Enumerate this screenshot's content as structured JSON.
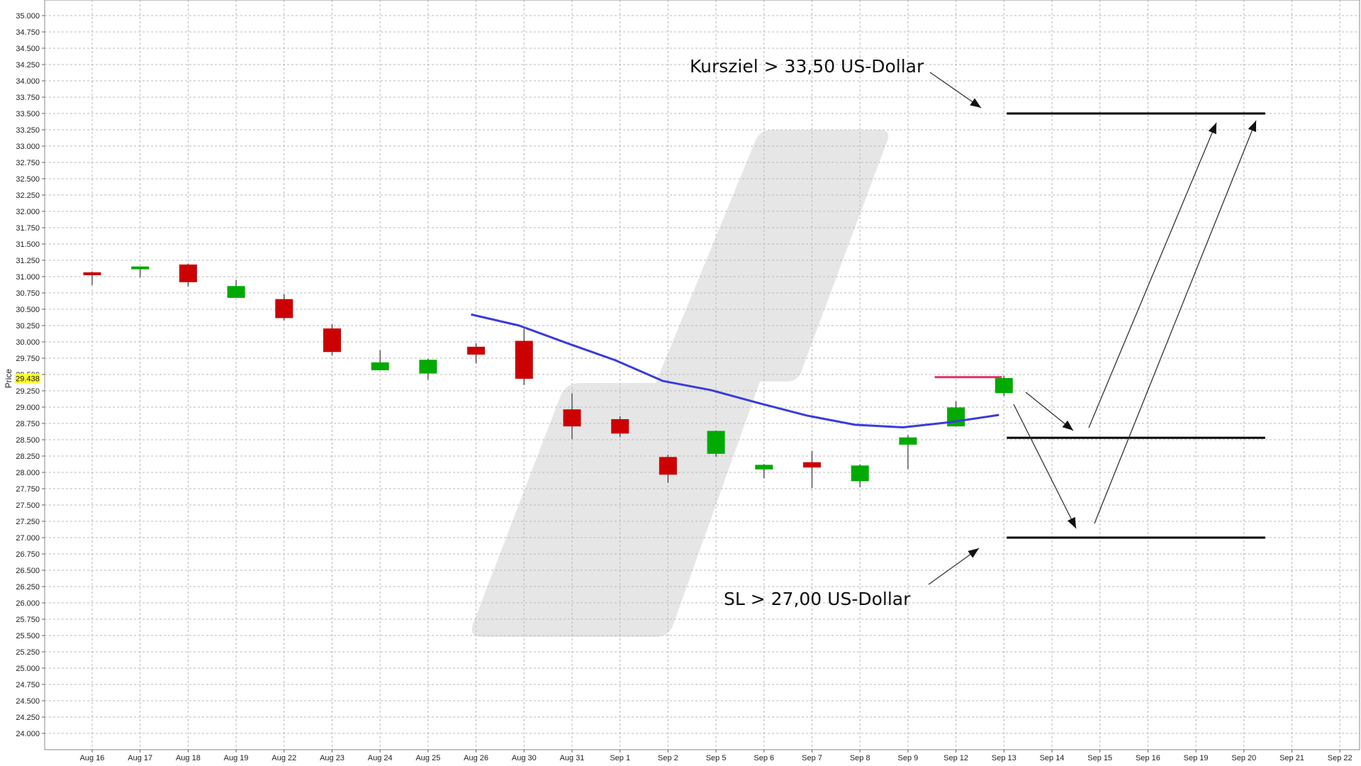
{
  "chart_data": {
    "type": "candlestick",
    "ylabel": "Price",
    "ylim": [
      23.75,
      35.0
    ],
    "y_ticks": [
      "35.000",
      "34.750",
      "34.500",
      "34.250",
      "34.000",
      "33.750",
      "33.500",
      "33.250",
      "33.000",
      "32.750",
      "32.500",
      "32.250",
      "32.000",
      "31.750",
      "31.500",
      "31.250",
      "31.000",
      "30.750",
      "30.500",
      "30.250",
      "30.000",
      "29.750",
      "29.500",
      "29.250",
      "29.000",
      "28.750",
      "28.500",
      "28.250",
      "28.000",
      "27.750",
      "27.500",
      "27.250",
      "27.000",
      "26.750",
      "26.500",
      "26.250",
      "26.000",
      "25.750",
      "25.500",
      "25.250",
      "25.000",
      "24.750",
      "24.500",
      "24.250",
      "24.000"
    ],
    "x_ticks": [
      "Aug 16",
      "Aug 17",
      "Aug 18",
      "Aug 19",
      "Aug 22",
      "Aug 23",
      "Aug 24",
      "Aug 25",
      "Aug 26",
      "Aug 30",
      "Aug 31",
      "Sep 1",
      "Sep 2",
      "Sep 5",
      "Sep 6",
      "Sep 7",
      "Sep 8",
      "Sep 9",
      "Sep 12",
      "Sep 13",
      "Sep 14",
      "Sep 15",
      "Sep 16",
      "Sep 19",
      "Sep 20",
      "Sep 21",
      "Sep 22"
    ],
    "grid": true,
    "colors": {
      "up": "#00aa00",
      "down": "#cc0000",
      "moving_average": "#3b3bdd",
      "last_price_highlight": "#ffff33",
      "last_price_line": "#e0306a",
      "levels": "#000000",
      "watermark": "#e6e6e6"
    },
    "candles": [
      {
        "x": "Aug 16",
        "open": 31.06,
        "high": 31.08,
        "low": 30.87,
        "close": 31.04
      },
      {
        "x": "Aug 17",
        "open": 31.13,
        "high": 31.15,
        "low": 30.99,
        "close": 31.15
      },
      {
        "x": "Aug 18",
        "open": 31.18,
        "high": 31.2,
        "low": 30.85,
        "close": 30.92
      },
      {
        "x": "Aug 19",
        "open": 30.68,
        "high": 30.95,
        "low": 30.68,
        "close": 30.85
      },
      {
        "x": "Aug 22",
        "open": 30.65,
        "high": 30.73,
        "low": 30.33,
        "close": 30.37
      },
      {
        "x": "Aug 23",
        "open": 30.2,
        "high": 30.27,
        "low": 29.79,
        "close": 29.85
      },
      {
        "x": "Aug 24",
        "open": 29.57,
        "high": 29.87,
        "low": 29.57,
        "close": 29.68
      },
      {
        "x": "Aug 25",
        "open": 29.52,
        "high": 29.74,
        "low": 29.42,
        "close": 29.72
      },
      {
        "x": "Aug 26",
        "open": 29.92,
        "high": 29.98,
        "low": 29.67,
        "close": 29.81
      },
      {
        "x": "Aug 30",
        "open": 30.01,
        "high": 30.2,
        "low": 29.34,
        "close": 29.44
      },
      {
        "x": "Aug 31",
        "open": 28.96,
        "high": 29.21,
        "low": 28.51,
        "close": 28.71
      },
      {
        "x": "Sep 1",
        "open": 28.81,
        "high": 28.86,
        "low": 28.54,
        "close": 28.6
      },
      {
        "x": "Sep 2",
        "open": 28.23,
        "high": 28.27,
        "low": 27.84,
        "close": 27.97
      },
      {
        "x": "Sep 5",
        "open": 28.29,
        "high": 28.64,
        "low": 28.24,
        "close": 28.63
      },
      {
        "x": "Sep 6",
        "open": 28.05,
        "high": 28.13,
        "low": 27.91,
        "close": 28.11
      },
      {
        "x": "Sep 7",
        "open": 28.15,
        "high": 28.33,
        "low": 27.76,
        "close": 28.08
      },
      {
        "x": "Sep 8",
        "open": 27.87,
        "high": 28.12,
        "low": 27.77,
        "close": 28.1
      },
      {
        "x": "Sep 9",
        "open": 28.43,
        "high": 28.57,
        "low": 28.05,
        "close": 28.53
      },
      {
        "x": "Sep 12",
        "open": 28.71,
        "high": 29.09,
        "low": 28.71,
        "close": 28.99
      },
      {
        "x": "Sep 13",
        "open": 29.22,
        "high": 29.48,
        "low": 29.17,
        "close": 29.44
      }
    ],
    "moving_average": [
      {
        "x": "Aug 26",
        "y": 30.42
      },
      {
        "x": "Aug 30",
        "y": 30.25
      },
      {
        "x": "Aug 31",
        "y": 29.98
      },
      {
        "x": "Sep 1",
        "y": 29.72
      },
      {
        "x": "Sep 2",
        "y": 29.4
      },
      {
        "x": "Sep 5",
        "y": 29.26
      },
      {
        "x": "Sep 6",
        "y": 29.06
      },
      {
        "x": "Sep 7",
        "y": 28.87
      },
      {
        "x": "Sep 8",
        "y": 28.73
      },
      {
        "x": "Sep 9",
        "y": 28.69
      },
      {
        "x": "Sep 12",
        "y": 28.77
      },
      {
        "x": "Sep 13",
        "y": 28.88
      }
    ],
    "last_price": {
      "label": "29.438",
      "value": 29.438,
      "line_from": "Sep 12",
      "line_to": "Sep 13"
    },
    "levels": [
      {
        "y": 33.5,
        "from": "Sep 13",
        "to": "Sep 20"
      },
      {
        "y": 28.53,
        "from": "Sep 13",
        "to": "Sep 20"
      },
      {
        "y": 27.0,
        "from": "Sep 13",
        "to": "Sep 20"
      }
    ],
    "annotations": [
      {
        "text": "Kursziel > 33,50 US-Dollar"
      },
      {
        "text": "SL > 27,00 US-Dollar"
      }
    ]
  }
}
